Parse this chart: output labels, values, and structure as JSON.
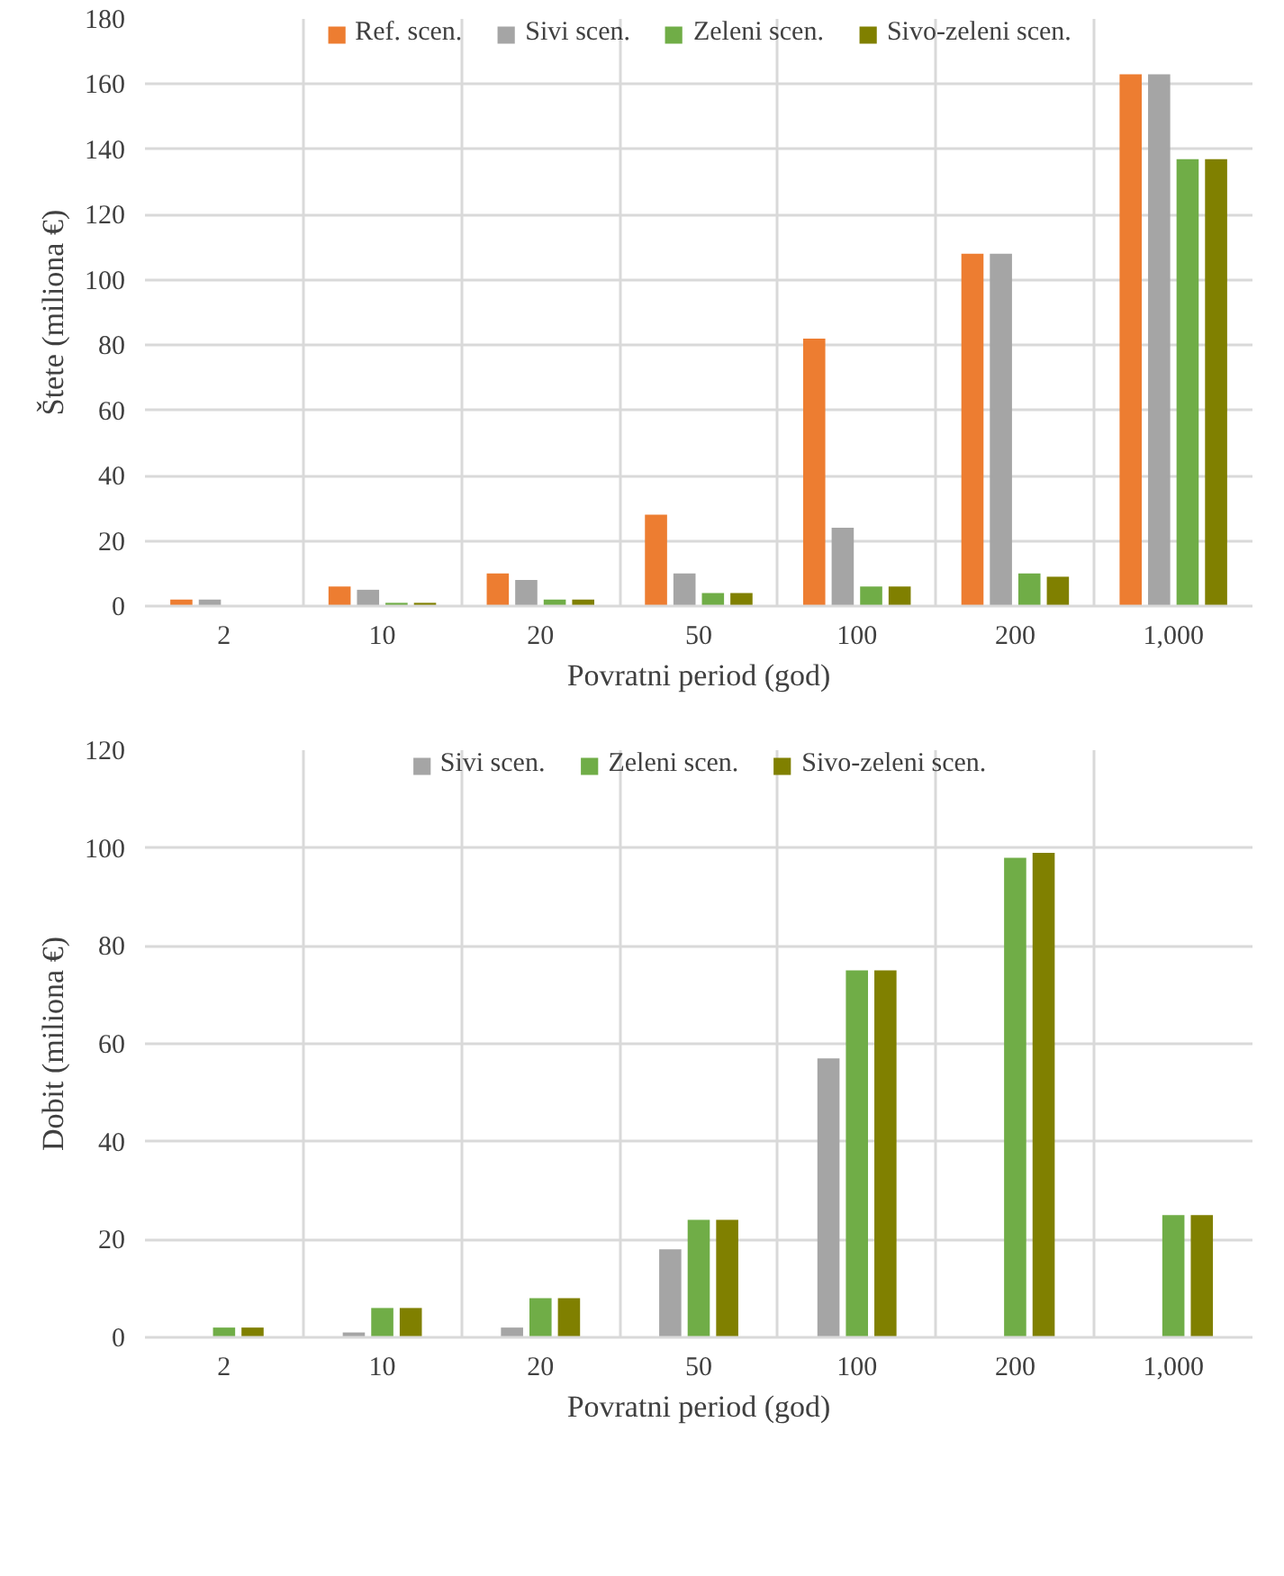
{
  "chart_data": [
    {
      "type": "bar",
      "xlabel": "Povratni period (god)",
      "ylabel": "Štete (miliona €)",
      "categories": [
        "2",
        "10",
        "20",
        "50",
        "100",
        "200",
        "1,000"
      ],
      "ylim": [
        0,
        180
      ],
      "yticks": [
        0,
        20,
        40,
        60,
        80,
        100,
        120,
        140,
        160,
        180
      ],
      "grid": true,
      "legend": "top",
      "series": [
        {
          "name": "Ref. scen.",
          "color": "#ed7d31",
          "values": [
            2,
            6,
            10,
            28,
            82,
            108,
            163
          ]
        },
        {
          "name": "Sivi scen.",
          "color": "#a5a5a5",
          "values": [
            2,
            5,
            8,
            10,
            24,
            108,
            163
          ]
        },
        {
          "name": "Zeleni scen.",
          "color": "#70ad47",
          "values": [
            null,
            1,
            2,
            4,
            6,
            10,
            137
          ]
        },
        {
          "name": "Sivo-zeleni scen.",
          "color": "#808000",
          "values": [
            null,
            1,
            2,
            4,
            6,
            9,
            137
          ]
        }
      ]
    },
    {
      "type": "bar",
      "xlabel": "Povratni period (god)",
      "ylabel": "Dobit (miliona €)",
      "categories": [
        "2",
        "10",
        "20",
        "50",
        "100",
        "200",
        "1,000"
      ],
      "ylim": [
        0,
        120
      ],
      "yticks": [
        0,
        20,
        40,
        60,
        80,
        100,
        120
      ],
      "grid": true,
      "legend": "top",
      "series": [
        {
          "name": "Sivi scen.",
          "color": "#a5a5a5",
          "values": [
            null,
            1,
            2,
            18,
            57,
            null,
            null
          ]
        },
        {
          "name": "Zeleni scen.",
          "color": "#70ad47",
          "values": [
            2,
            6,
            8,
            24,
            75,
            98,
            25
          ]
        },
        {
          "name": "Sivo-zeleni scen.",
          "color": "#808000",
          "values": [
            2,
            6,
            8,
            24,
            75,
            99,
            25
          ]
        }
      ]
    }
  ]
}
